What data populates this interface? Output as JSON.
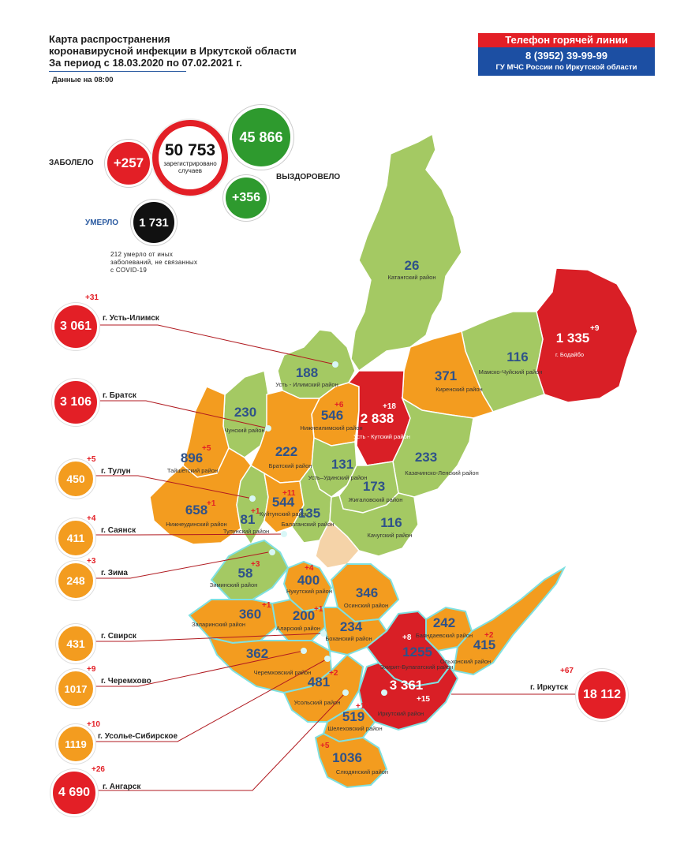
{
  "header": {
    "title_line1": "Карта распространения",
    "title_line2": "коронавирусной инфекции в Иркутской области",
    "title_line3": "За период с 18.03.2020 по 07.02.2021 г.",
    "as_of": "Данные на 08:00"
  },
  "hotline": {
    "title": "Телефон горячей линии",
    "phone": "8 (3952) 39-99-99",
    "org": "ГУ МЧС России по Иркутской области"
  },
  "summary": {
    "infected_label": "ЗАБОЛЕЛО",
    "infected_delta": "+257",
    "total": "50 753",
    "total_caption_1": "зарегистрировано",
    "total_caption_2": "случаев",
    "recovered": "45 866",
    "recovered_delta": "+356",
    "recovered_label": "ВЫЗДОРОВЕЛО",
    "died_label": "УМЕРЛО",
    "died": "1 731",
    "note_1": "212 умерло от иных",
    "note_2": "заболеваний, не связанных",
    "note_3": "с COVID-19",
    "colors": {
      "red": "#e31f26",
      "green": "#2e9a2e",
      "black": "#111111",
      "orange": "#f39c1f",
      "light_green": "#a4c963",
      "dark_red": "#d91f26"
    }
  },
  "cities": [
    {
      "name": "г. Усть-Илимск",
      "value": "3 061",
      "delta": "+31",
      "color": "red"
    },
    {
      "name": "г. Братск",
      "value": "3 106",
      "delta": "",
      "color": "red"
    },
    {
      "name": "г. Тулун",
      "value": "450",
      "delta": "+5",
      "color": "orange"
    },
    {
      "name": "г. Саянск",
      "value": "411",
      "delta": "+4",
      "color": "orange"
    },
    {
      "name": "г. Зима",
      "value": "248",
      "delta": "+3",
      "color": "orange"
    },
    {
      "name": "г. Свирск",
      "value": "431",
      "delta": "",
      "color": "orange"
    },
    {
      "name": "г. Черемхово",
      "value": "1017",
      "delta": "+9",
      "color": "orange"
    },
    {
      "name": "г. Усолье-Сибирское",
      "value": "1119",
      "delta": "+10",
      "color": "orange"
    },
    {
      "name": "г. Ангарск",
      "value": "4 690",
      "delta": "+26",
      "color": "red"
    },
    {
      "name": "г. Иркутск",
      "value": "18 112",
      "delta": "+67",
      "color": "red"
    }
  ],
  "regions": [
    {
      "value": "26",
      "name": "Катангский район",
      "delta": ""
    },
    {
      "value": "1 335",
      "name": "г. Бодайбо",
      "delta": "+9"
    },
    {
      "value": "116",
      "name": "Мамско-Чуйский район",
      "delta": ""
    },
    {
      "value": "371",
      "name": "Киренский район",
      "delta": ""
    },
    {
      "value": "188",
      "name": "Усть - Илимский район",
      "delta": ""
    },
    {
      "value": "546",
      "name": "Нижнеилимский район",
      "delta": "+6"
    },
    {
      "value": "2 838",
      "name": "Усть - Кутский район",
      "delta": "+18"
    },
    {
      "value": "230",
      "name": "Чунский район",
      "delta": ""
    },
    {
      "value": "896",
      "name": "Тайшетский район",
      "delta": "+5"
    },
    {
      "value": "222",
      "name": "Братский район",
      "delta": ""
    },
    {
      "value": "131",
      "name": "Усть–Удинский район",
      "delta": ""
    },
    {
      "value": "233",
      "name": "Казачинско-Ленский район",
      "delta": ""
    },
    {
      "value": "173",
      "name": "Жигаловский район",
      "delta": ""
    },
    {
      "value": "658",
      "name": "Нижнеудинский район",
      "delta": "+1"
    },
    {
      "value": "544",
      "name": "Куйтунский район",
      "delta": "+11"
    },
    {
      "value": "81",
      "name": "Тулунский район",
      "delta": "+1"
    },
    {
      "value": "135",
      "name": "Балаганский район",
      "delta": "+3"
    },
    {
      "value": "116",
      "name": "Качугский район",
      "delta": ""
    },
    {
      "value": "58",
      "name": "Зиминский район",
      "delta": ""
    },
    {
      "value": "400",
      "name": "Нукутский район",
      "delta": "+4"
    },
    {
      "value": "346",
      "name": "Осинский район",
      "delta": ""
    },
    {
      "value": "360",
      "name": "Заларинский район",
      "delta": "+1"
    },
    {
      "value": "200",
      "name": "Аларский район",
      "delta": "+1"
    },
    {
      "value": "234",
      "name": "Боханский район",
      "delta": ""
    },
    {
      "value": "242",
      "name": "Баяндаевский район",
      "delta": ""
    },
    {
      "value": "1255",
      "name": "Эхирит-Булагатский район",
      "delta": "+8"
    },
    {
      "value": "415",
      "name": "Ольхонский район",
      "delta": "+2"
    },
    {
      "value": "362",
      "name": "Черемховский район",
      "delta": ""
    },
    {
      "value": "481",
      "name": "Усольский район",
      "delta": "+2"
    },
    {
      "value": "3 361",
      "name": "Иркутский район",
      "delta": "+15"
    },
    {
      "value": "519",
      "name": "Шелеховский район",
      "delta": "+10"
    },
    {
      "value": "1036",
      "name": "Слюдянский район",
      "delta": "+5"
    }
  ]
}
